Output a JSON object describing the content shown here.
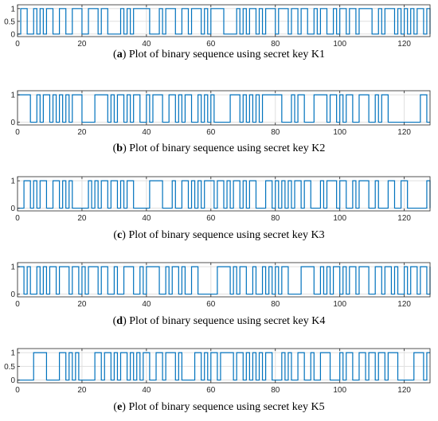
{
  "chart_data": [
    {
      "type": "line",
      "letter": "a",
      "caption": "Plot of binary sequence using secret key K1",
      "xlim": [
        0,
        128
      ],
      "ylim": [
        -0.1,
        1.15
      ],
      "xticks": [
        0,
        20,
        40,
        60,
        80,
        100,
        120
      ],
      "yticks": [
        {
          "v": 0,
          "label": "0"
        },
        {
          "v": 0.5,
          "label": "0.5"
        },
        {
          "v": 1,
          "label": "1"
        }
      ],
      "grid": true,
      "line_color": "#0072BD",
      "values": "0110010101100110011100111011000010101111100010111001101110101111000010101101011101110110110010110010110110111100101110101010110101"
    },
    {
      "type": "line",
      "letter": "b",
      "caption": "Plot of binary sequence using secret key K2",
      "xlim": [
        0,
        128
      ],
      "ylim": [
        -0.1,
        1.15
      ],
      "xticks": [
        0,
        20,
        40,
        60,
        80,
        100,
        120
      ],
      "yticks": [
        {
          "v": 0,
          "label": "0"
        },
        {
          "v": 1,
          "label": "1"
        }
      ],
      "grid": true,
      "line_color": "#0072BD",
      "values": "1111001011010101011100001111010110101100101110011010110010101000001110101010111111000101100011110110101100111001011000000000011000"
    },
    {
      "type": "line",
      "letter": "c",
      "caption": "Plot of binary sequence using secret key K3",
      "xlim": [
        0,
        128
      ],
      "ylim": [
        -0.1,
        1.15
      ],
      "xticks": [
        0,
        20,
        40,
        60,
        80,
        100,
        120
      ],
      "yticks": [
        {
          "v": 0,
          "label": "0"
        },
        {
          "v": 1,
          "label": "1"
        }
      ],
      "grid": true,
      "line_color": "#0072BD",
      "values": "0011010110011010100000101011011010110000011110001001101010111011010110101100011010101011011000101110110010111001000110011000000110"
    },
    {
      "type": "line",
      "letter": "d",
      "caption": "Plot of binary sequence using secret key K4",
      "xlim": [
        0,
        128
      ],
      "ylim": [
        -0.1,
        1.15
      ],
      "xticks": [
        0,
        20,
        40,
        60,
        80,
        100,
        120
      ],
      "yticks": [
        {
          "v": 0,
          "label": "0"
        },
        {
          "v": 1,
          "label": "1"
        }
      ],
      "grid": true,
      "line_color": "#0072BD",
      "values": "1101001010110111011010111011001001110010111100101101001100000011110101100100101010110000111100101011010110111001101101001011011010"
    },
    {
      "type": "line",
      "letter": "e",
      "caption": "Plot of binary sequence using secret key K5",
      "xlim": [
        0,
        128
      ],
      "ylim": [
        -0.1,
        1.15
      ],
      "xticks": [
        0,
        20,
        40,
        60,
        80,
        100,
        120
      ],
      "yticks": [
        {
          "v": 0,
          "label": "0"
        },
        {
          "v": 0.5,
          "label": "0.5"
        },
        {
          "v": 1,
          "label": "1"
        }
      ],
      "grid": true,
      "line_color": "#0072BD",
      "values": "0000011110000110101000001101101011010101100110111010000110101101111011010101011000101001100100111000101100110110110111000001110111"
    }
  ]
}
